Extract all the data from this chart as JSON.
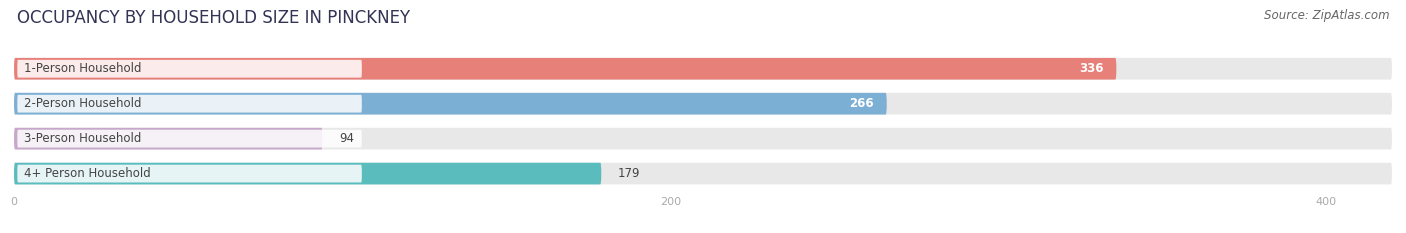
{
  "title": "OCCUPANCY BY HOUSEHOLD SIZE IN PINCKNEY",
  "source": "Source: ZipAtlas.com",
  "categories": [
    "1-Person Household",
    "2-Person Household",
    "3-Person Household",
    "4+ Person Household"
  ],
  "values": [
    336,
    266,
    94,
    179
  ],
  "bar_colors": [
    "#E8807A",
    "#7BAFD4",
    "#C8A8CA",
    "#5BBCBE"
  ],
  "label_colors": [
    "white",
    "white",
    "black",
    "black"
  ],
  "xlim": [
    0,
    420
  ],
  "xticks": [
    0,
    200,
    400
  ],
  "background_color": "#ffffff",
  "bar_bg_color": "#e8e8e8",
  "title_fontsize": 12,
  "source_fontsize": 8.5,
  "label_fontsize": 8.5,
  "value_fontsize": 8.5
}
